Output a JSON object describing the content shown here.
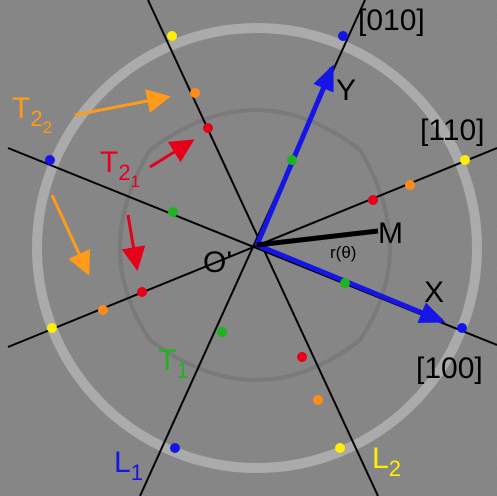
{
  "labels": {
    "dir010": "[010]",
    "y_axis": "Y",
    "dir110": "[110]",
    "dir100": "[100]",
    "x_axis": "X",
    "m": "M",
    "r_theta": "r(θ)",
    "origin": "O'",
    "t22": {
      "text": "T",
      "sub": "2",
      "subsub": "2"
    },
    "t21": {
      "text": "T",
      "sub": "2",
      "subsub": "1"
    },
    "t1": {
      "text": "T",
      "sub": "1"
    },
    "l1": {
      "text": "L",
      "sub": "1"
    },
    "l2": {
      "text": "L",
      "sub": "2"
    }
  }
}
